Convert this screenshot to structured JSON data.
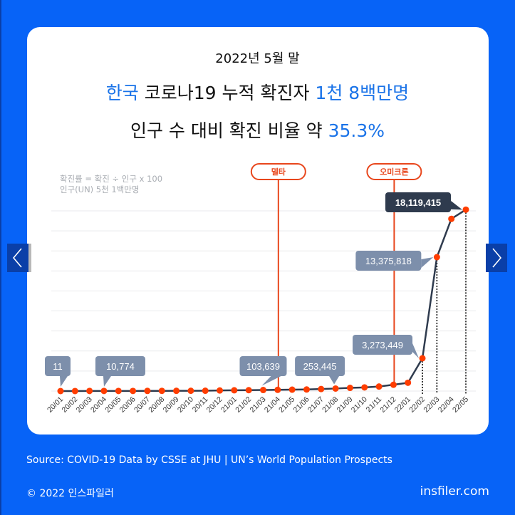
{
  "header": {
    "subtitle": "2022년 5월 말",
    "headline_prefix": "한국",
    "headline_mid": " 코로나19 누적 확진자 ",
    "headline_value": "1천 8백만명",
    "ratio_prefix": "인구 수 대비 확진 비율 약 ",
    "ratio_value": "35.3%"
  },
  "note": {
    "line1": "확진률 = 확진 ÷ 인구 x 100",
    "line2": "인구(UN) 5천 1백만명"
  },
  "navigation": {
    "prev_icon": "chevron-left-icon",
    "next_icon": "chevron-right-icon"
  },
  "footer": {
    "source": "Source:  COVID-19 Data by CSSE at JHU | UN’s World Population Prospects",
    "copyright": "© 2022 인스파일러",
    "site": "insfiler.com"
  },
  "colors": {
    "background": "#0763f7",
    "accent_blue": "#1a73e8",
    "line": "#2f3b4e",
    "point": "#ff3d00",
    "variant_marker": "#e8461c",
    "callout": "#7d8fab",
    "callout_dark": "#2f3b4e"
  },
  "chart_data": {
    "type": "line",
    "title": "한국 코로나19 누적 확진자",
    "xlabel": "",
    "ylabel": "",
    "ylim": [
      0,
      18000000
    ],
    "grid": true,
    "categories": [
      "20/01",
      "20/02",
      "20/03",
      "20/04",
      "20/05",
      "20/06",
      "20/07",
      "20/08",
      "20/09",
      "20/10",
      "20/11",
      "20/12",
      "21/01",
      "21/02",
      "21/03",
      "21/04",
      "21/05",
      "21/06",
      "21/07",
      "21/08",
      "21/09",
      "21/10",
      "21/11",
      "21/12",
      "22/01",
      "22/02",
      "22/03",
      "22/04",
      "22/05"
    ],
    "series": [
      {
        "name": "누적 확진자",
        "values": [
          11,
          3150,
          9786,
          10774,
          11468,
          12850,
          14336,
          19947,
          23889,
          26511,
          34201,
          60740,
          78205,
          89321,
          103639,
          123240,
          140340,
          158549,
          201002,
          253445,
          316020,
          365915,
          452350,
          630838,
          828887,
          3273449,
          13375818,
          17200000,
          18119415
        ]
      }
    ],
    "labeled_points": [
      {
        "category": "20/01",
        "label": "11"
      },
      {
        "category": "20/04",
        "label": "10,774"
      },
      {
        "category": "21/03",
        "label": "103,639"
      },
      {
        "category": "21/08",
        "label": "253,445"
      },
      {
        "category": "22/02",
        "label": "3,273,449"
      },
      {
        "category": "22/03",
        "label": "13,375,818"
      },
      {
        "category": "22/05",
        "label": "18,119,415",
        "highlight": true
      }
    ],
    "annotations": [
      {
        "category": "21/04",
        "label": "델타"
      },
      {
        "category": "21/12",
        "label": "오미크론"
      }
    ],
    "dotted_drop_lines": [
      "22/02",
      "22/03",
      "22/05"
    ]
  }
}
